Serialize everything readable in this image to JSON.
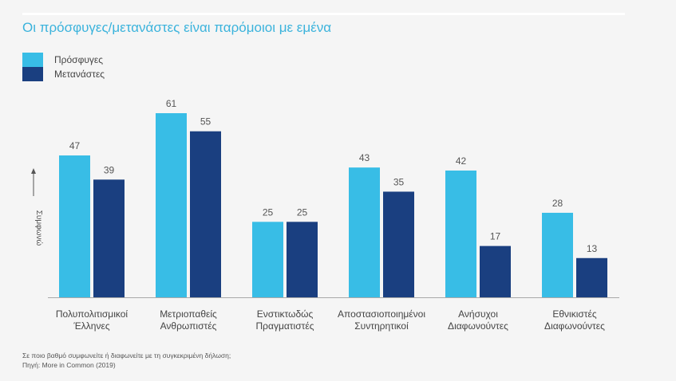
{
  "chart_data": {
    "type": "bar",
    "title": "Οι πρόσφυγες/μετανάστες είναι παρόμοιοι με εμένα",
    "xlabel": "",
    "ylabel": "Συμφωνώ",
    "ylim": [
      0,
      61
    ],
    "grid": false,
    "legend_position": "top-left",
    "categories": [
      [
        "Πολυπολιτισμικοί",
        "Έλληνες"
      ],
      [
        "Μετριοπαθείς",
        "Ανθρωπιστές"
      ],
      [
        "Ενστικτωδώς",
        "Πραγματιστές"
      ],
      [
        "Αποστασιοποιημένοι",
        "Συντηρητικοί"
      ],
      [
        "Ανήσυχοι",
        "Διαφωνούντες"
      ],
      [
        "Εθνικιστές",
        "Διαφωνούντες"
      ]
    ],
    "series": [
      {
        "name": "Πρόσφυγες",
        "color": "#38bde6",
        "values": [
          47,
          61,
          25,
          43,
          42,
          28
        ]
      },
      {
        "name": "Μετανάστες",
        "color": "#1a3f80",
        "values": [
          39,
          55,
          25,
          35,
          17,
          13
        ]
      }
    ]
  },
  "footnote": {
    "question": "Σε ποιο βαθμό συμφωνείτε ή διαφωνείτε με τη συγκεκριμένη δήλωση;",
    "source": "Πηγή: More in Common (2019)"
  },
  "colors": {
    "title": "#3bb3dc",
    "axis": "#a9a9a9"
  }
}
